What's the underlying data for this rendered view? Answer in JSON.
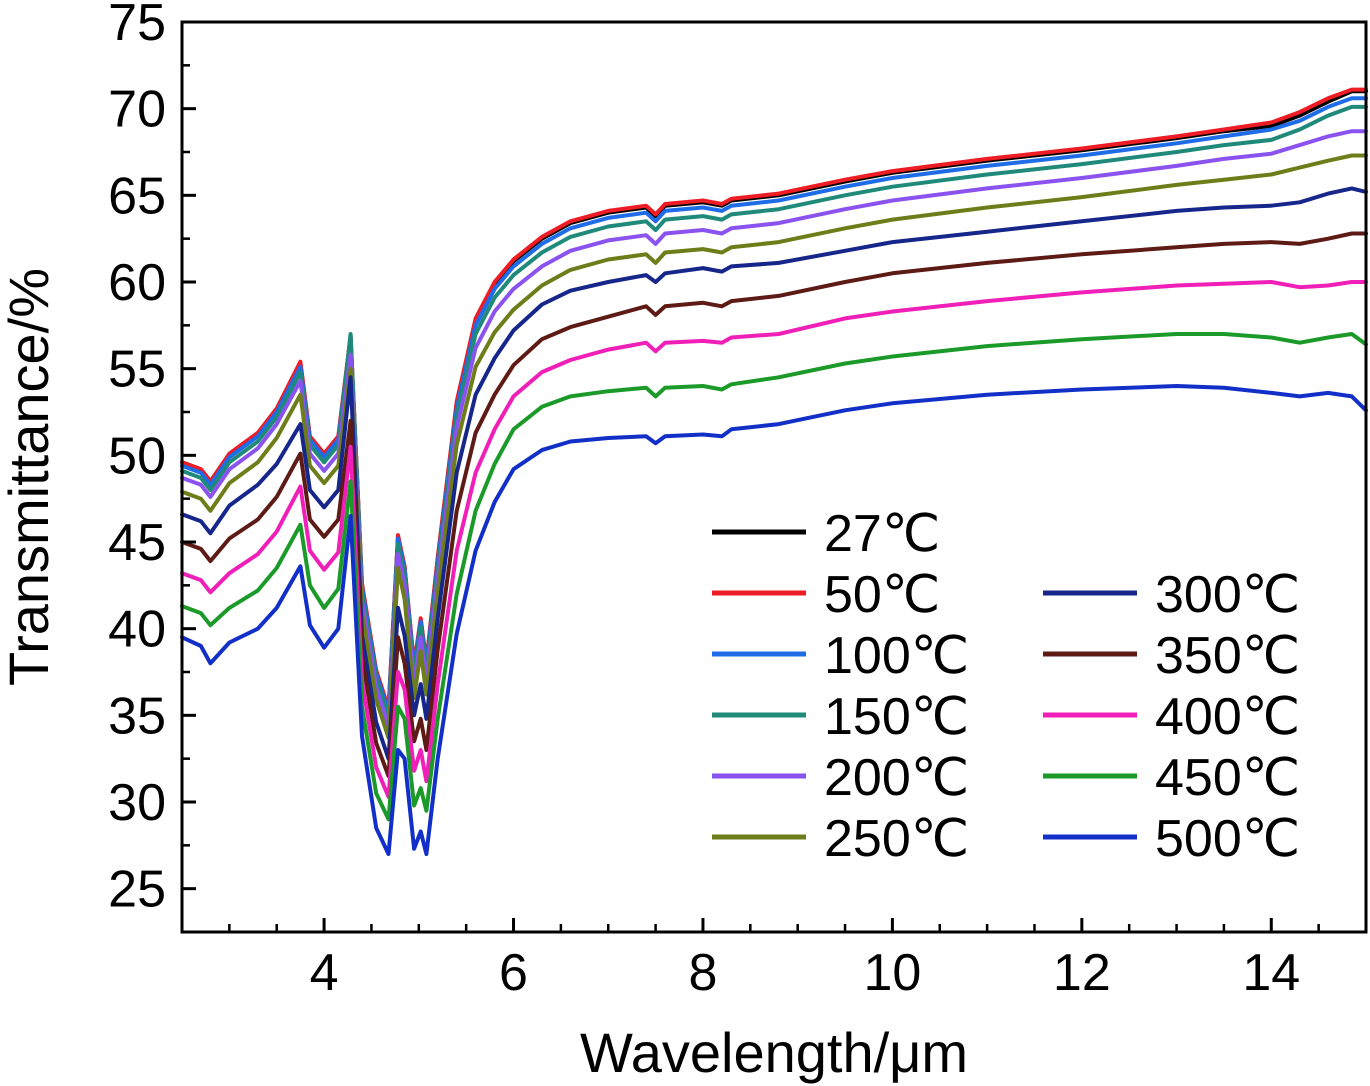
{
  "chart_data": {
    "type": "line",
    "title": "",
    "xlabel": "Wavelength/μm",
    "ylabel": "Transmittance/%",
    "xlim": [
      2.5,
      15
    ],
    "ylim": [
      22.5,
      75
    ],
    "xticks": [
      4,
      6,
      8,
      10,
      12,
      14
    ],
    "yticks": [
      25,
      30,
      35,
      40,
      45,
      50,
      55,
      60,
      65,
      70,
      75
    ],
    "legend_position": "bottom-right",
    "x": [
      2.5,
      2.7,
      2.8,
      3.0,
      3.3,
      3.5,
      3.75,
      3.85,
      4.0,
      4.15,
      4.28,
      4.4,
      4.55,
      4.68,
      4.78,
      4.85,
      4.95,
      5.02,
      5.08,
      5.2,
      5.4,
      5.6,
      5.8,
      6.0,
      6.3,
      6.6,
      7.0,
      7.4,
      7.5,
      7.6,
      8.0,
      8.2,
      8.3,
      8.8,
      9.5,
      10,
      11,
      12,
      13,
      13.5,
      14,
      14.3,
      14.6,
      14.85,
      15
    ],
    "series": [
      {
        "name": "27℃",
        "color": "#000000",
        "values": [
          49.6,
          49.2,
          48.5,
          50.0,
          51.2,
          52.6,
          55.3,
          51.0,
          50.0,
          51.0,
          56.8,
          42.5,
          37.5,
          35.3,
          45.3,
          43.5,
          37.8,
          40.5,
          38.0,
          44.0,
          53.0,
          57.8,
          59.9,
          61.2,
          62.5,
          63.4,
          64.0,
          64.3,
          63.8,
          64.4,
          64.6,
          64.4,
          64.7,
          65.0,
          65.8,
          66.3,
          67.0,
          67.6,
          68.3,
          68.7,
          69.0,
          69.6,
          70.4,
          71.0,
          71.0
        ]
      },
      {
        "name": "50℃",
        "color": "#ee1c24",
        "values": [
          49.6,
          49.2,
          48.5,
          50.1,
          51.3,
          52.7,
          55.4,
          51.1,
          50.1,
          51.1,
          56.9,
          42.6,
          37.6,
          35.4,
          45.4,
          43.6,
          37.9,
          40.6,
          38.1,
          44.1,
          53.1,
          57.9,
          60.0,
          61.3,
          62.6,
          63.5,
          64.1,
          64.4,
          63.9,
          64.5,
          64.7,
          64.5,
          64.8,
          65.1,
          65.9,
          66.4,
          67.1,
          67.7,
          68.4,
          68.8,
          69.2,
          69.8,
          70.6,
          71.1,
          71.1
        ]
      },
      {
        "name": "100℃",
        "color": "#1f6ce8",
        "values": [
          49.4,
          49.0,
          48.3,
          49.9,
          51.1,
          52.5,
          55.1,
          50.9,
          49.9,
          50.9,
          56.7,
          42.4,
          37.4,
          35.2,
          45.2,
          43.4,
          37.7,
          40.4,
          37.9,
          43.8,
          52.7,
          57.5,
          59.6,
          60.9,
          62.2,
          63.1,
          63.7,
          64.0,
          63.5,
          64.1,
          64.3,
          64.1,
          64.4,
          64.7,
          65.5,
          66.0,
          66.7,
          67.3,
          68.0,
          68.4,
          68.8,
          69.3,
          70.1,
          70.6,
          70.6
        ]
      },
      {
        "name": "150℃",
        "color": "#1f8a7a",
        "values": [
          49.1,
          48.7,
          48.0,
          49.6,
          50.8,
          52.2,
          54.8,
          50.6,
          49.6,
          50.6,
          57.0,
          42.1,
          37.1,
          34.9,
          44.9,
          43.1,
          37.4,
          40.1,
          37.6,
          43.5,
          52.3,
          57.0,
          59.1,
          60.4,
          61.7,
          62.6,
          63.2,
          63.5,
          63.0,
          63.6,
          63.8,
          63.6,
          63.9,
          64.2,
          65.0,
          65.5,
          66.2,
          66.8,
          67.5,
          67.9,
          68.2,
          68.8,
          69.6,
          70.1,
          70.1
        ]
      },
      {
        "name": "200℃",
        "color": "#8a52ee",
        "values": [
          48.7,
          48.3,
          47.6,
          49.2,
          50.4,
          51.8,
          54.3,
          50.1,
          49.1,
          50.1,
          55.8,
          41.6,
          36.6,
          34.4,
          44.3,
          42.5,
          36.8,
          39.5,
          37.0,
          42.9,
          51.6,
          56.2,
          58.3,
          59.6,
          60.9,
          61.8,
          62.4,
          62.7,
          62.2,
          62.8,
          63.0,
          62.8,
          63.1,
          63.4,
          64.2,
          64.7,
          65.4,
          66.0,
          66.7,
          67.1,
          67.4,
          67.9,
          68.4,
          68.7,
          68.7
        ]
      },
      {
        "name": "250℃",
        "color": "#6d7d1a",
        "values": [
          47.9,
          47.5,
          46.8,
          48.4,
          49.6,
          51.0,
          53.5,
          49.4,
          48.4,
          49.4,
          55.0,
          40.9,
          35.9,
          33.7,
          43.5,
          41.7,
          36.0,
          38.7,
          36.2,
          42.1,
          50.6,
          55.1,
          57.1,
          58.4,
          59.8,
          60.7,
          61.3,
          61.6,
          61.1,
          61.7,
          61.9,
          61.7,
          62.0,
          62.3,
          63.1,
          63.6,
          64.3,
          64.9,
          65.6,
          65.9,
          66.2,
          66.6,
          67.0,
          67.3,
          67.3
        ]
      },
      {
        "name": "300℃",
        "color": "#16268a",
        "values": [
          46.6,
          46.2,
          45.5,
          47.1,
          48.3,
          49.5,
          51.8,
          48.0,
          47.0,
          48.0,
          54.5,
          39.6,
          34.6,
          32.5,
          41.2,
          39.6,
          35.0,
          36.8,
          34.8,
          40.6,
          49.0,
          53.5,
          55.6,
          57.2,
          58.7,
          59.5,
          60.0,
          60.4,
          60.0,
          60.5,
          60.8,
          60.6,
          60.9,
          61.1,
          61.8,
          62.3,
          62.9,
          63.5,
          64.1,
          64.3,
          64.4,
          64.6,
          65.1,
          65.4,
          65.2
        ]
      },
      {
        "name": "350℃",
        "color": "#5e1a14",
        "values": [
          45.0,
          44.6,
          43.9,
          45.2,
          46.3,
          47.6,
          50.1,
          46.3,
          45.3,
          46.3,
          52.0,
          38.4,
          33.4,
          31.5,
          39.5,
          38.0,
          33.5,
          34.8,
          33.0,
          38.8,
          46.8,
          51.3,
          53.5,
          55.2,
          56.7,
          57.4,
          58.0,
          58.6,
          58.1,
          58.6,
          58.8,
          58.6,
          58.9,
          59.2,
          60.0,
          60.5,
          61.1,
          61.6,
          62.0,
          62.2,
          62.3,
          62.2,
          62.5,
          62.8,
          62.8
        ]
      },
      {
        "name": "400℃",
        "color": "#f01fb8",
        "values": [
          43.2,
          42.8,
          42.1,
          43.2,
          44.3,
          45.6,
          48.2,
          44.5,
          43.4,
          44.4,
          50.5,
          37.0,
          32.0,
          30.3,
          37.5,
          36.5,
          31.8,
          33.0,
          31.2,
          36.8,
          44.5,
          49.0,
          51.5,
          53.4,
          54.8,
          55.5,
          56.1,
          56.5,
          56.0,
          56.5,
          56.6,
          56.5,
          56.8,
          57.0,
          57.9,
          58.3,
          58.9,
          59.4,
          59.8,
          59.9,
          60.0,
          59.7,
          59.8,
          60.0,
          60.0
        ]
      },
      {
        "name": "450℃",
        "color": "#1b9a2a",
        "values": [
          41.3,
          40.9,
          40.2,
          41.2,
          42.2,
          43.5,
          46.0,
          42.5,
          41.2,
          42.3,
          48.5,
          35.5,
          30.5,
          29.0,
          35.5,
          34.8,
          29.8,
          30.8,
          29.5,
          34.8,
          42.0,
          46.8,
          49.5,
          51.5,
          52.8,
          53.4,
          53.7,
          53.9,
          53.4,
          53.9,
          54.0,
          53.8,
          54.1,
          54.5,
          55.3,
          55.7,
          56.3,
          56.7,
          57.0,
          57.0,
          56.8,
          56.5,
          56.8,
          57.0,
          56.4
        ]
      },
      {
        "name": "500℃",
        "color": "#1230c8",
        "values": [
          39.5,
          39.0,
          38.0,
          39.2,
          40.0,
          41.2,
          43.6,
          40.2,
          38.9,
          40.0,
          46.5,
          33.8,
          28.5,
          27.0,
          33.0,
          32.5,
          27.3,
          28.3,
          27.0,
          32.5,
          39.7,
          44.5,
          47.3,
          49.2,
          50.3,
          50.8,
          51.0,
          51.1,
          50.7,
          51.1,
          51.2,
          51.1,
          51.5,
          51.8,
          52.6,
          53.0,
          53.5,
          53.8,
          54.0,
          53.9,
          53.6,
          53.4,
          53.6,
          53.4,
          52.6
        ]
      }
    ]
  }
}
